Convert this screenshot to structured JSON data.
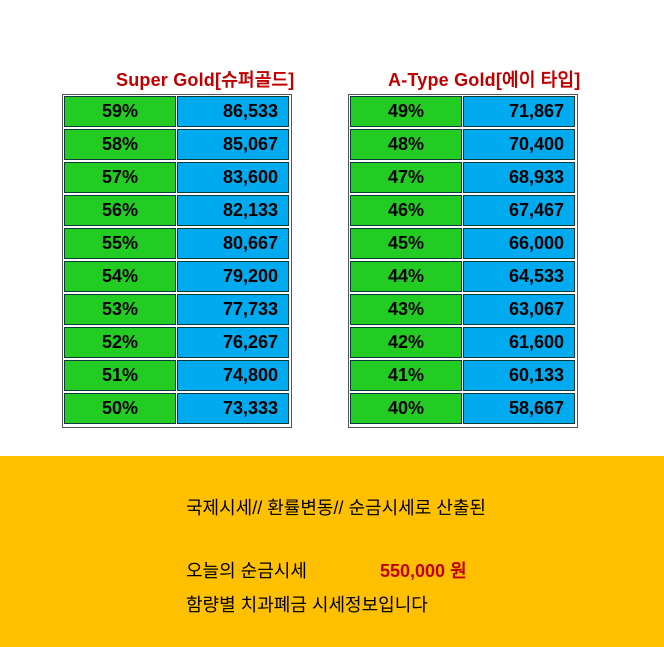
{
  "left_table": {
    "title": "Super Gold[슈퍼골드]",
    "rows": [
      {
        "pct": "59%",
        "value": "86,533"
      },
      {
        "pct": "58%",
        "value": "85,067"
      },
      {
        "pct": "57%",
        "value": "83,600"
      },
      {
        "pct": "56%",
        "value": "82,133"
      },
      {
        "pct": "55%",
        "value": "80,667"
      },
      {
        "pct": "54%",
        "value": "79,200"
      },
      {
        "pct": "53%",
        "value": "77,733"
      },
      {
        "pct": "52%",
        "value": "76,267"
      },
      {
        "pct": "51%",
        "value": "74,800"
      },
      {
        "pct": "50%",
        "value": "73,333"
      }
    ]
  },
  "right_table": {
    "title": "A-Type Gold[에이 타입]",
    "rows": [
      {
        "pct": "49%",
        "value": "71,867"
      },
      {
        "pct": "48%",
        "value": "70,400"
      },
      {
        "pct": "47%",
        "value": "68,933"
      },
      {
        "pct": "46%",
        "value": "67,467"
      },
      {
        "pct": "45%",
        "value": "66,000"
      },
      {
        "pct": "44%",
        "value": "64,533"
      },
      {
        "pct": "43%",
        "value": "63,067"
      },
      {
        "pct": "42%",
        "value": "61,600"
      },
      {
        "pct": "41%",
        "value": "60,133"
      },
      {
        "pct": "40%",
        "value": "58,667"
      }
    ]
  },
  "footer": {
    "line1": "국제시세// 환률변동// 순금시세로 산출된",
    "line2": "오늘의 순금시세",
    "price": "550,000  원",
    "line3": "함량별 치과폐금 시세정보입니다"
  },
  "colors": {
    "percent_cell": "#22cc22",
    "value_cell": "#00aaee",
    "title": "#c00000",
    "footer_bg": "#ffc000"
  }
}
